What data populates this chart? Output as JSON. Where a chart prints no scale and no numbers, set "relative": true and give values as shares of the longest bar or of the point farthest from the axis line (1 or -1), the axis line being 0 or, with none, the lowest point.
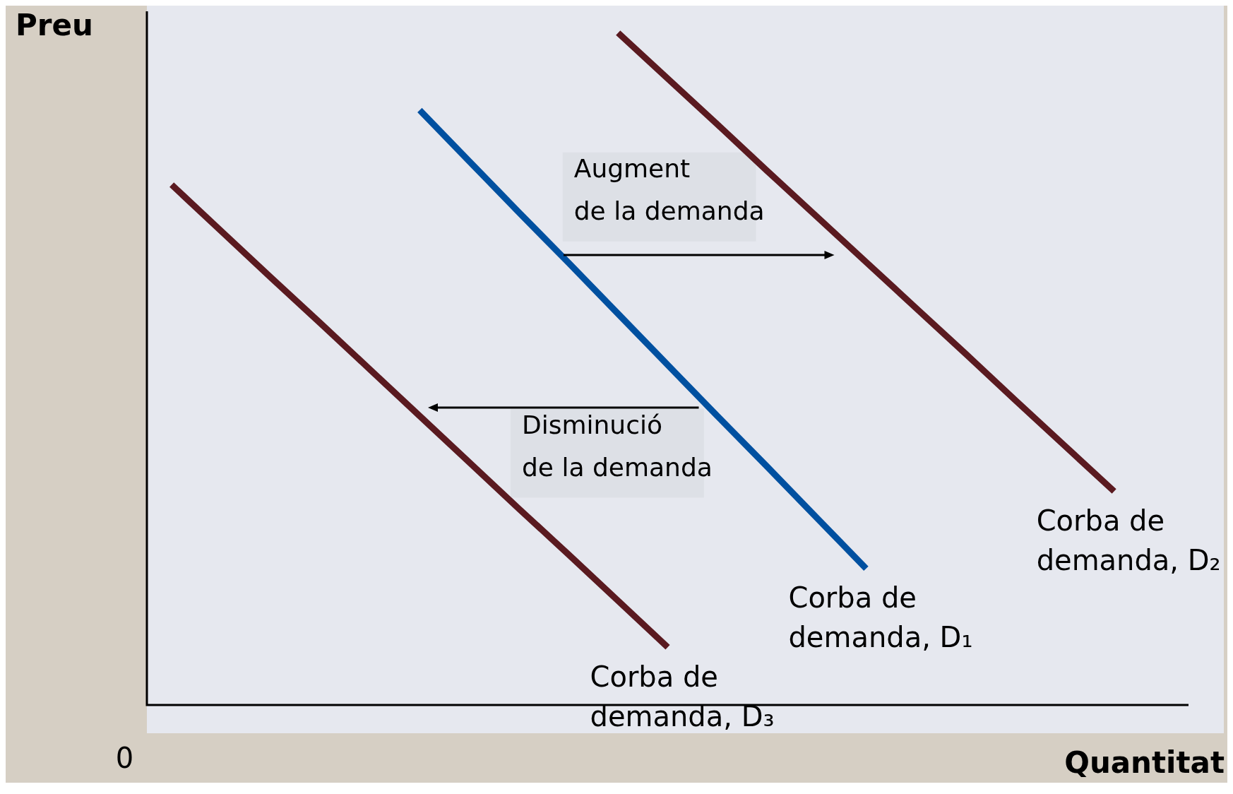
{
  "chart_data": {
    "type": "line",
    "relative": true,
    "xlabel": "Quantitat",
    "ylabel": "Preu",
    "categories": [
      null,
      null,
      null,
      null,
      null,
      null,
      null,
      null,
      null,
      null,
      null,
      null,
      null,
      null,
      null,
      null,
      null,
      null,
      null,
      null,
      null
    ],
    "series": [
      {
        "name": "Corba de\ndemanda, D₁",
        "color": "#0050a0",
        "values": [
          null,
          null,
          null,
          null,
          null,
          0.885,
          0.809,
          0.733,
          0.658,
          0.582,
          0.506,
          0.43,
          0.355,
          0.279,
          0.203,
          null,
          null,
          null,
          null,
          null,
          null
        ]
      },
      {
        "name": "Corba de\ndemanda, D₂",
        "color": "#5a1a20",
        "values": [
          null,
          null,
          null,
          null,
          null,
          null,
          null,
          null,
          null,
          1.0,
          0.932,
          0.864,
          0.795,
          0.727,
          0.659,
          0.591,
          0.523,
          0.454,
          0.386,
          0.318,
          null
        ]
      },
      {
        "name": "Corba de\ndemanda, D₃",
        "color": "#5a1a20",
        "values": [
          0.774,
          0.705,
          0.636,
          0.568,
          0.499,
          0.43,
          0.361,
          0.292,
          0.224,
          0.155,
          0.086,
          null,
          null,
          null,
          null,
          null,
          null,
          null,
          null,
          null,
          null
        ]
      }
    ],
    "annotations": [
      "Augment\nde la demanda",
      "Disminució\nde la demanda",
      "0"
    ]
  }
}
